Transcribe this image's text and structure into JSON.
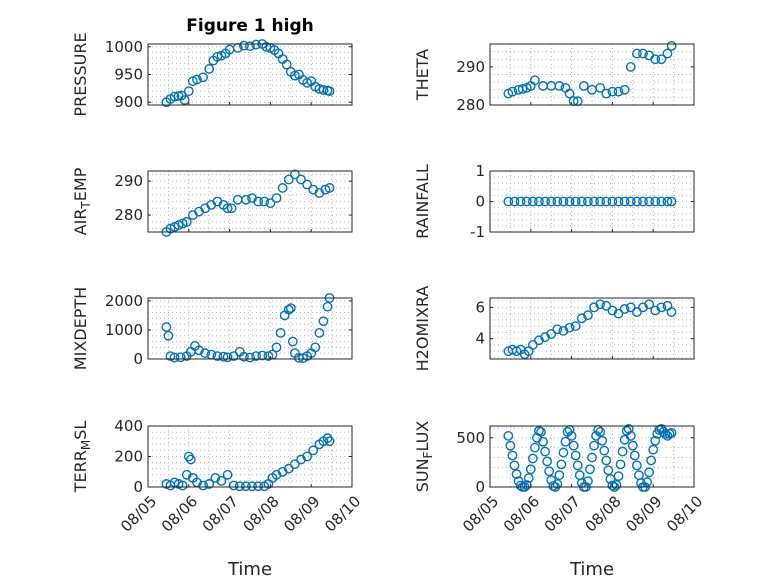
{
  "chart_data": [
    {
      "id": "pressure",
      "type": "scatter",
      "title": "Figure 1 high",
      "ylabel": "PRESSURE",
      "xlabel": "",
      "ylim": [
        895,
        1005
      ],
      "yticks": [
        "900",
        "950",
        "1000"
      ],
      "ytick_values": [
        900,
        950,
        1000
      ],
      "xlim": [
        0,
        5
      ],
      "xticks": [],
      "xtick_values": [],
      "grid": true,
      "marker": "circle",
      "color": "#0072BD",
      "series": [
        {
          "x": [
            0.45,
            0.55,
            0.65,
            0.75,
            0.82,
            0.9,
            1.0,
            1.1,
            1.2,
            1.35,
            1.5,
            1.6,
            1.7,
            1.8,
            1.9,
            2.0,
            2.2,
            2.35,
            2.5,
            2.65,
            2.8,
            2.9,
            3.0,
            3.1,
            3.2,
            3.3,
            3.4,
            3.5,
            3.6,
            3.7,
            3.8,
            3.9,
            4.0,
            4.1,
            4.2,
            4.3,
            4.4,
            4.45
          ],
          "y": [
            900,
            906,
            910,
            911,
            912,
            904,
            920,
            938,
            941,
            945,
            960,
            975,
            982,
            984,
            988,
            995,
            998,
            1002,
            1001,
            1004,
            1005,
            1000,
            998,
            994,
            988,
            978,
            968,
            955,
            948,
            950,
            940,
            935,
            938,
            928,
            924,
            922,
            921,
            920
          ]
        }
      ]
    },
    {
      "id": "theta",
      "type": "scatter",
      "title": "",
      "ylabel": "THETA",
      "xlabel": "",
      "ylim": [
        280,
        296
      ],
      "yticks": [
        "280",
        "290"
      ],
      "ytick_values": [
        280,
        290
      ],
      "xlim": [
        0,
        5
      ],
      "xticks": [],
      "xtick_values": [],
      "grid": true,
      "marker": "circle",
      "color": "#0072BD",
      "series": [
        {
          "x": [
            0.45,
            0.55,
            0.7,
            0.8,
            0.9,
            1.0,
            1.1,
            1.3,
            1.5,
            1.7,
            1.85,
            1.95,
            2.05,
            2.15,
            2.3,
            2.5,
            2.7,
            2.85,
            3.0,
            3.15,
            3.3,
            3.45,
            3.6,
            3.75,
            3.9,
            4.05,
            4.2,
            4.35,
            4.45
          ],
          "y": [
            283,
            283.5,
            284,
            284.2,
            284.5,
            285,
            286.5,
            285,
            285,
            285,
            284.5,
            283,
            281,
            281,
            285,
            284,
            284.5,
            283,
            283.5,
            283.5,
            284,
            290,
            293.5,
            293.5,
            293,
            292,
            292,
            293.5,
            295.5
          ]
        }
      ]
    },
    {
      "id": "air_temp",
      "type": "scatter",
      "title": "",
      "ylabel": "AIR",
      "ylabel_sub": "T",
      "ylabel_tail": "EMP",
      "xlabel": "",
      "ylim": [
        275,
        293
      ],
      "yticks": [
        "280",
        "290"
      ],
      "ytick_values": [
        280,
        290
      ],
      "xlim": [
        0,
        5
      ],
      "xticks": [],
      "xtick_values": [],
      "grid": true,
      "marker": "circle",
      "color": "#0072BD",
      "series": [
        {
          "x": [
            0.45,
            0.55,
            0.65,
            0.75,
            0.85,
            0.95,
            1.1,
            1.25,
            1.4,
            1.55,
            1.7,
            1.85,
            1.95,
            2.05,
            2.2,
            2.4,
            2.55,
            2.7,
            2.85,
            3.0,
            3.15,
            3.3,
            3.45,
            3.6,
            3.75,
            3.9,
            4.05,
            4.2,
            4.35,
            4.45
          ],
          "y": [
            275,
            276,
            276.5,
            277,
            277.5,
            278,
            280,
            281,
            282,
            283,
            284,
            283,
            282,
            282,
            284.5,
            284.5,
            285,
            284,
            284,
            283.5,
            285,
            288,
            290.5,
            292,
            290.5,
            289,
            287.5,
            286.5,
            287.5,
            288
          ]
        }
      ]
    },
    {
      "id": "rainfall",
      "type": "scatter",
      "title": "",
      "ylabel": "RAINFALL",
      "xlabel": "",
      "ylim": [
        -1,
        1
      ],
      "yticks": [
        "-1",
        "0",
        "1"
      ],
      "ytick_values": [
        -1,
        0,
        1
      ],
      "xlim": [
        0,
        5
      ],
      "xticks": [],
      "xtick_values": [],
      "grid": true,
      "marker": "circle",
      "color": "#0072BD",
      "series": [
        {
          "x": [
            0.45,
            0.6,
            0.75,
            0.9,
            1.05,
            1.2,
            1.35,
            1.5,
            1.65,
            1.8,
            1.95,
            2.1,
            2.25,
            2.4,
            2.55,
            2.7,
            2.85,
            3.0,
            3.15,
            3.3,
            3.45,
            3.6,
            3.75,
            3.9,
            4.05,
            4.2,
            4.35,
            4.45
          ],
          "y": [
            0,
            0,
            0,
            0,
            0,
            0,
            0,
            0,
            0,
            0,
            0,
            0,
            0,
            0,
            0,
            0,
            0,
            0,
            0,
            0,
            0,
            0,
            0,
            0,
            0,
            0,
            0,
            0
          ]
        }
      ]
    },
    {
      "id": "mixdepth",
      "type": "scatter",
      "title": "",
      "ylabel": "MIXDEPTH",
      "xlabel": "",
      "ylim": [
        0,
        2100
      ],
      "yticks": [
        "0",
        "1000",
        "2000"
      ],
      "ytick_values": [
        0,
        1000,
        2000
      ],
      "xlim": [
        0,
        5
      ],
      "xticks": [],
      "xtick_values": [],
      "grid": true,
      "marker": "circle",
      "color": "#0072BD",
      "series": [
        {
          "x": [
            0.45,
            0.5,
            0.55,
            0.65,
            0.8,
            0.95,
            1.05,
            1.15,
            1.25,
            1.4,
            1.55,
            1.7,
            1.85,
            1.95,
            2.1,
            2.25,
            2.35,
            2.5,
            2.65,
            2.8,
            2.95,
            3.05,
            3.15,
            3.25,
            3.35,
            3.45,
            3.5,
            3.55,
            3.6,
            3.7,
            3.8,
            3.9,
            4.0,
            4.1,
            4.2,
            4.3,
            4.4,
            4.45
          ],
          "y": [
            1100,
            800,
            100,
            50,
            60,
            100,
            250,
            450,
            300,
            200,
            150,
            100,
            80,
            60,
            100,
            250,
            80,
            50,
            100,
            120,
            100,
            150,
            400,
            900,
            1500,
            1700,
            1750,
            600,
            200,
            40,
            30,
            100,
            200,
            400,
            900,
            1300,
            1800,
            2100
          ]
        }
      ]
    },
    {
      "id": "h2omixra",
      "type": "scatter",
      "title": "",
      "ylabel": "H2OMIXRA",
      "xlabel": "",
      "ylim": [
        2.7,
        6.6
      ],
      "yticks": [
        "4",
        "6"
      ],
      "ytick_values": [
        4,
        6
      ],
      "xlim": [
        0,
        5
      ],
      "xticks": [],
      "xtick_values": [],
      "grid": true,
      "marker": "circle",
      "color": "#0072BD",
      "series": [
        {
          "x": [
            0.45,
            0.55,
            0.65,
            0.75,
            0.85,
            0.95,
            1.05,
            1.2,
            1.35,
            1.5,
            1.65,
            1.8,
            1.95,
            2.1,
            2.25,
            2.4,
            2.55,
            2.7,
            2.85,
            3.0,
            3.15,
            3.3,
            3.45,
            3.6,
            3.75,
            3.9,
            4.05,
            4.2,
            4.35,
            4.45
          ],
          "y": [
            3.2,
            3.3,
            3.2,
            3.3,
            3.0,
            3.2,
            3.6,
            3.9,
            4.1,
            4.3,
            4.6,
            4.5,
            4.7,
            4.8,
            5.3,
            5.5,
            6.0,
            6.2,
            6.1,
            5.8,
            5.6,
            5.9,
            6.0,
            5.7,
            6.0,
            6.2,
            5.8,
            6.0,
            6.1,
            5.7
          ]
        }
      ]
    },
    {
      "id": "terr_msl",
      "type": "scatter",
      "title": "",
      "ylabel": "TERR",
      "ylabel_sub": "M",
      "ylabel_tail": "SL",
      "xlabel": "Time",
      "ylim": [
        0,
        400
      ],
      "yticks": [
        "0",
        "200",
        "400"
      ],
      "ytick_values": [
        0,
        200,
        400
      ],
      "xlim": [
        0,
        5
      ],
      "xticks": [
        "08/05",
        "08/06",
        "08/07",
        "08/08",
        "08/09",
        "08/10"
      ],
      "xtick_values": [
        0,
        1,
        2,
        3,
        4,
        5
      ],
      "grid": true,
      "marker": "circle",
      "color": "#0072BD",
      "series": [
        {
          "x": [
            0.45,
            0.55,
            0.65,
            0.75,
            0.85,
            0.95,
            1.0,
            1.05,
            1.1,
            1.2,
            1.35,
            1.5,
            1.65,
            1.8,
            1.95,
            2.1,
            2.25,
            2.4,
            2.55,
            2.7,
            2.85,
            2.95,
            3.05,
            3.15,
            3.3,
            3.45,
            3.6,
            3.75,
            3.9,
            4.05,
            4.2,
            4.3,
            4.4,
            4.45
          ],
          "y": [
            20,
            10,
            30,
            20,
            10,
            80,
            200,
            180,
            60,
            30,
            10,
            20,
            60,
            40,
            80,
            10,
            5,
            5,
            5,
            5,
            5,
            20,
            60,
            80,
            100,
            120,
            150,
            180,
            200,
            240,
            280,
            300,
            320,
            300
          ]
        }
      ]
    },
    {
      "id": "sun_flux",
      "type": "scatter",
      "title": "",
      "ylabel": "SUN",
      "ylabel_sub": "F",
      "ylabel_tail": "LUX",
      "xlabel": "Time",
      "ylim": [
        0,
        620
      ],
      "yticks": [
        "0",
        "500"
      ],
      "ytick_values": [
        0,
        500
      ],
      "xlim": [
        0,
        5
      ],
      "xticks": [
        "08/05",
        "08/06",
        "08/07",
        "08/08",
        "08/09",
        "08/10"
      ],
      "xtick_values": [
        0,
        1,
        2,
        3,
        4,
        5
      ],
      "grid": true,
      "marker": "circle",
      "color": "#0072BD",
      "series": [
        {
          "x": [
            0.45,
            0.5,
            0.55,
            0.6,
            0.65,
            0.7,
            0.75,
            0.8,
            0.85,
            0.9,
            0.95,
            1.0,
            1.05,
            1.1,
            1.15,
            1.2,
            1.25,
            1.3,
            1.35,
            1.4,
            1.45,
            1.5,
            1.55,
            1.6,
            1.65,
            1.7,
            1.75,
            1.8,
            1.85,
            1.9,
            1.95,
            2.0,
            2.05,
            2.1,
            2.15,
            2.2,
            2.25,
            2.3,
            2.35,
            2.4,
            2.45,
            2.5,
            2.55,
            2.6,
            2.65,
            2.7,
            2.75,
            2.8,
            2.85,
            2.9,
            2.95,
            3.0,
            3.05,
            3.1,
            3.15,
            3.2,
            3.25,
            3.3,
            3.35,
            3.4,
            3.45,
            3.5,
            3.55,
            3.6,
            3.65,
            3.7,
            3.75,
            3.8,
            3.85,
            3.9,
            3.95,
            4.0,
            4.05,
            4.1,
            4.15,
            4.2,
            4.25,
            4.3,
            4.35,
            4.4,
            4.45
          ],
          "y": [
            520,
            420,
            320,
            220,
            130,
            60,
            15,
            0,
            0,
            20,
            90,
            180,
            290,
            400,
            500,
            570,
            560,
            460,
            360,
            260,
            160,
            70,
            10,
            0,
            30,
            120,
            230,
            350,
            460,
            560,
            580,
            520,
            420,
            320,
            220,
            120,
            40,
            0,
            0,
            60,
            180,
            300,
            420,
            520,
            580,
            560,
            470,
            370,
            270,
            170,
            80,
            15,
            0,
            20,
            110,
            230,
            360,
            480,
            570,
            590,
            520,
            420,
            320,
            220,
            120,
            40,
            0,
            0,
            50,
            150,
            270,
            380,
            470,
            540,
            580,
            590,
            560,
            540,
            520,
            540,
            550
          ]
        }
      ]
    }
  ]
}
